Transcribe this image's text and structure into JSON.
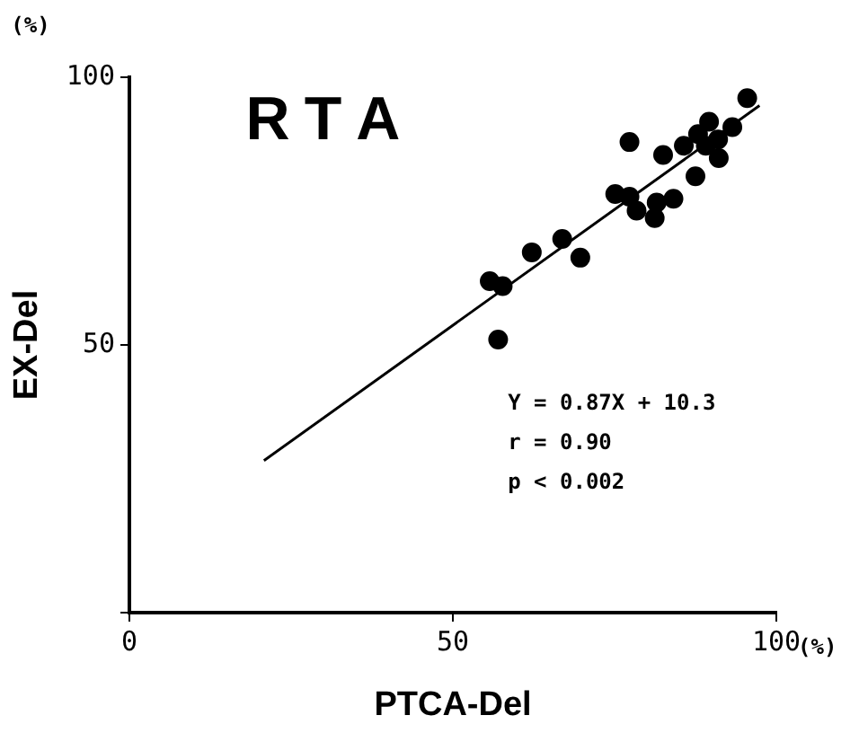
{
  "chart_data": {
    "type": "scatter",
    "title": "RTA",
    "xlabel": "PTCA-Del",
    "ylabel": "EX-Del",
    "annotations": [
      "(%)",
      "(%)",
      "Y = 0.87X + 10.3",
      "r = 0.90",
      "p < 0.002"
    ],
    "xlim": [
      0,
      100
    ],
    "xticks": [
      0,
      50,
      100
    ],
    "ylim": [
      0,
      100
    ],
    "yticks": [
      {
        "value": 0,
        "label": null
      },
      50,
      100
    ],
    "grid": false,
    "legend": false,
    "marker": "circle",
    "series": [
      {
        "type": "scatter",
        "color": "#000000",
        "x": [
          55.7,
          57.7,
          57.0,
          62.2,
          66.9,
          69.7,
          75.1,
          77.3,
          77.3,
          78.4,
          81.5,
          81.2,
          82.5,
          84.1,
          85.7,
          87.5,
          87.9,
          89.6,
          89.1,
          91.0,
          91.1,
          93.2,
          95.5
        ],
        "values": [
          61.9,
          61.0,
          51.0,
          67.3,
          69.8,
          66.3,
          78.2,
          87.9,
          77.7,
          75.1,
          76.6,
          73.7,
          85.5,
          77.3,
          87.2,
          81.5,
          89.4,
          91.7,
          87.2,
          88.4,
          84.9,
          90.7,
          96.1
        ]
      },
      {
        "type": "line",
        "color": "#000000",
        "x": [
          20.8,
          97.4
        ],
        "values": [
          28.4,
          94.7
        ],
        "marker": "none",
        "line_style": "solid"
      }
    ]
  }
}
